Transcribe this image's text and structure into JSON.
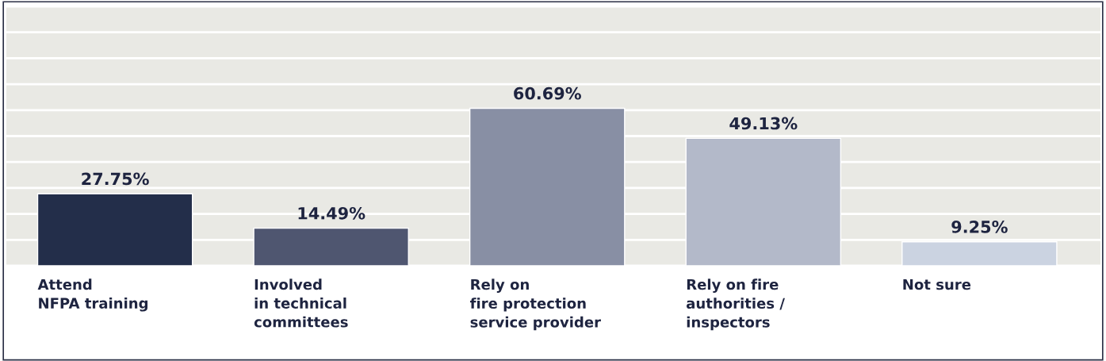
{
  "chart_data": {
    "type": "bar",
    "categories": [
      "Attend\nNFPA training",
      "Involved\nin technical\ncommittees",
      "Rely on\nfire protection\nservice provider",
      "Rely on fire\nauthorities /\ninspectors",
      "Not sure"
    ],
    "values": [
      27.75,
      14.49,
      60.69,
      49.13,
      9.25
    ],
    "colors": [
      "#232e4a",
      "#4f5670",
      "#888fa4",
      "#b3b9c9",
      "#cbd3e1"
    ],
    "value_labels": [
      "27.75%",
      "14.49%",
      "60.69%",
      "49.13%",
      "9.25%"
    ],
    "ylim": [
      0,
      100
    ],
    "yticks": [
      {
        "value": 0,
        "label": null
      },
      {
        "value": 10,
        "label": null
      },
      {
        "value": 20,
        "label": null
      },
      {
        "value": 30,
        "label": null
      },
      {
        "value": 40,
        "label": null
      },
      {
        "value": 50,
        "label": null
      },
      {
        "value": 60,
        "label": null
      },
      {
        "value": 70,
        "label": null
      },
      {
        "value": 80,
        "label": null
      },
      {
        "value": 90,
        "label": null
      },
      {
        "value": 100,
        "label": null
      }
    ],
    "grid": "y",
    "legend": false
  }
}
